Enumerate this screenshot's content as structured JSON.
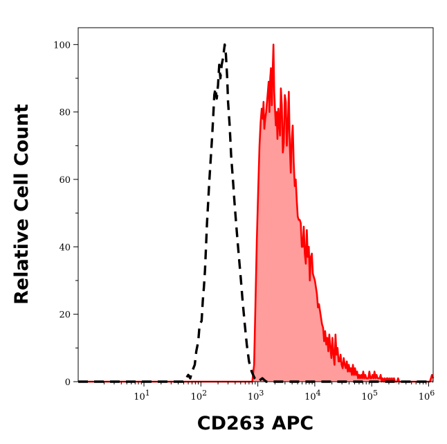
{
  "chart_data": {
    "type": "area",
    "title": "",
    "xlabel": "CD263 APC",
    "ylabel": "Relative Cell Count",
    "x_scale": "log",
    "xlim": [
      0.7,
      1200000
    ],
    "ylim": [
      0,
      105
    ],
    "grid": false,
    "legend": "none",
    "x_ticks": [
      {
        "value": 10,
        "base": "10",
        "exp": "1"
      },
      {
        "value": 100,
        "base": "10",
        "exp": "2"
      },
      {
        "value": 1000,
        "base": "10",
        "exp": "3"
      },
      {
        "value": 10000,
        "base": "10",
        "exp": "4"
      },
      {
        "value": 100000,
        "base": "10",
        "exp": "5"
      },
      {
        "value": 1000000,
        "base": "10",
        "exp": "6"
      }
    ],
    "y_ticks": [
      "0",
      "20",
      "40",
      "60",
      "80",
      "100"
    ],
    "series": [
      {
        "style": "dashed",
        "color": "#000000",
        "points": [
          [
            0.7,
            0
          ],
          [
            30,
            0
          ],
          [
            52,
            0
          ],
          [
            55,
            1
          ],
          [
            60,
            2
          ],
          [
            65,
            1
          ],
          [
            70,
            3
          ],
          [
            78,
            5
          ],
          [
            83,
            9
          ],
          [
            90,
            12
          ],
          [
            95,
            17
          ],
          [
            103,
            18
          ],
          [
            108,
            24
          ],
          [
            113,
            28
          ],
          [
            118,
            33
          ],
          [
            123,
            40
          ],
          [
            128,
            47
          ],
          [
            133,
            52
          ],
          [
            140,
            59
          ],
          [
            150,
            67
          ],
          [
            158,
            73
          ],
          [
            165,
            79
          ],
          [
            172,
            85
          ],
          [
            180,
            87
          ],
          [
            190,
            84
          ],
          [
            200,
            88
          ],
          [
            210,
            94
          ],
          [
            220,
            90
          ],
          [
            232,
            94
          ],
          [
            245,
            96
          ],
          [
            262,
            100
          ],
          [
            275,
            97
          ],
          [
            290,
            90
          ],
          [
            300,
            83
          ],
          [
            320,
            76
          ],
          [
            340,
            67
          ],
          [
            365,
            60
          ],
          [
            390,
            53
          ],
          [
            420,
            46
          ],
          [
            460,
            38
          ],
          [
            500,
            31
          ],
          [
            540,
            24
          ],
          [
            590,
            17
          ],
          [
            640,
            11
          ],
          [
            700,
            6
          ],
          [
            780,
            3
          ],
          [
            880,
            1
          ],
          [
            1000,
            0
          ],
          [
            1200,
            1
          ],
          [
            1400,
            0
          ],
          [
            3000,
            0
          ],
          [
            5000,
            0
          ],
          [
            8000,
            0
          ],
          [
            10000,
            0
          ],
          [
            1200000,
            0
          ]
        ]
      },
      {
        "style": "filled",
        "color": "#ff0000",
        "fill": "#ff9c9c",
        "points": [
          [
            0.7,
            0
          ],
          [
            500,
            0
          ],
          [
            800,
            0
          ],
          [
            860,
            5
          ],
          [
            900,
            20
          ],
          [
            960,
            42
          ],
          [
            1020,
            58
          ],
          [
            1070,
            70
          ],
          [
            1120,
            77
          ],
          [
            1170,
            81
          ],
          [
            1220,
            78
          ],
          [
            1260,
            83
          ],
          [
            1300,
            75
          ],
          [
            1350,
            78
          ],
          [
            1400,
            80
          ],
          [
            1450,
            83
          ],
          [
            1500,
            86
          ],
          [
            1550,
            89
          ],
          [
            1600,
            80
          ],
          [
            1650,
            90
          ],
          [
            1700,
            93
          ],
          [
            1760,
            82
          ],
          [
            1820,
            92
          ],
          [
            1880,
            100
          ],
          [
            1940,
            86
          ],
          [
            2000,
            81
          ],
          [
            2070,
            76
          ],
          [
            2140,
            80
          ],
          [
            2210,
            72
          ],
          [
            2290,
            81
          ],
          [
            2370,
            77
          ],
          [
            2450,
            73
          ],
          [
            2540,
            87
          ],
          [
            2640,
            82
          ],
          [
            2750,
            68
          ],
          [
            2860,
            71
          ],
          [
            2980,
            85
          ],
          [
            3100,
            83
          ],
          [
            3230,
            70
          ],
          [
            3360,
            76
          ],
          [
            3500,
            86
          ],
          [
            3640,
            70
          ],
          [
            3790,
            62
          ],
          [
            3940,
            72
          ],
          [
            4100,
            76
          ],
          [
            4270,
            65
          ],
          [
            4450,
            58
          ],
          [
            4630,
            60
          ],
          [
            4820,
            54
          ],
          [
            5020,
            49
          ],
          [
            5230,
            48
          ],
          [
            5450,
            48
          ],
          [
            5680,
            47
          ],
          [
            5910,
            40
          ],
          [
            6150,
            40
          ],
          [
            6410,
            46
          ],
          [
            6680,
            38
          ],
          [
            6960,
            35
          ],
          [
            7250,
            45
          ],
          [
            7550,
            37
          ],
          [
            7860,
            40
          ],
          [
            8190,
            30
          ],
          [
            8530,
            37
          ],
          [
            8890,
            38
          ],
          [
            9260,
            32
          ],
          [
            9650,
            31
          ],
          [
            10050,
            30
          ],
          [
            10470,
            28
          ],
          [
            10910,
            26
          ],
          [
            11370,
            22
          ],
          [
            11850,
            23
          ],
          [
            12350,
            21
          ],
          [
            12870,
            19
          ],
          [
            13420,
            17
          ],
          [
            14000,
            16
          ],
          [
            14600,
            12
          ],
          [
            15200,
            15
          ],
          [
            15900,
            11
          ],
          [
            16600,
            13
          ],
          [
            17300,
            9
          ],
          [
            18000,
            14
          ],
          [
            18800,
            10
          ],
          [
            19600,
            7
          ],
          [
            20400,
            13
          ],
          [
            21300,
            8
          ],
          [
            22200,
            5
          ],
          [
            23100,
            14
          ],
          [
            24100,
            8
          ],
          [
            25100,
            10
          ],
          [
            26200,
            6
          ],
          [
            27300,
            6
          ],
          [
            28400,
            8
          ],
          [
            29600,
            5
          ],
          [
            30900,
            4
          ],
          [
            32200,
            7
          ],
          [
            33600,
            5
          ],
          [
            35000,
            4
          ],
          [
            36500,
            6
          ],
          [
            38000,
            3
          ],
          [
            39600,
            5
          ],
          [
            41300,
            3
          ],
          [
            43100,
            4
          ],
          [
            44900,
            2
          ],
          [
            46800,
            5
          ],
          [
            48800,
            2
          ],
          [
            50900,
            4
          ],
          [
            53000,
            2
          ],
          [
            55300,
            3
          ],
          [
            57600,
            1
          ],
          [
            60100,
            2
          ],
          [
            62600,
            1
          ],
          [
            65300,
            2
          ],
          [
            68100,
            1
          ],
          [
            71000,
            3
          ],
          [
            74000,
            1
          ],
          [
            77100,
            2
          ],
          [
            80400,
            1
          ],
          [
            83800,
            1
          ],
          [
            87300,
            1
          ],
          [
            91000,
            3
          ],
          [
            94900,
            1
          ],
          [
            98900,
            1
          ],
          [
            103100,
            2
          ],
          [
            107500,
            1
          ],
          [
            112000,
            3
          ],
          [
            116700,
            1
          ],
          [
            121700,
            2
          ],
          [
            126800,
            1
          ],
          [
            132200,
            1
          ],
          [
            137800,
            1
          ],
          [
            143700,
            2
          ],
          [
            149700,
            0
          ],
          [
            156100,
            1
          ],
          [
            162700,
            0
          ],
          [
            169600,
            1
          ],
          [
            176800,
            0
          ],
          [
            184200,
            1
          ],
          [
            192000,
            1
          ],
          [
            200200,
            0
          ],
          [
            208600,
            1
          ],
          [
            217500,
            0
          ],
          [
            226700,
            1
          ],
          [
            236300,
            0
          ],
          [
            246300,
            1
          ],
          [
            256700,
            0
          ],
          [
            267600,
            0
          ],
          [
            278900,
            0
          ],
          [
            290700,
            1
          ],
          [
            303000,
            0
          ],
          [
            315800,
            0
          ],
          [
            329200,
            0
          ],
          [
            343100,
            0
          ],
          [
            357700,
            0
          ],
          [
            372800,
            0
          ],
          [
            388600,
            0
          ],
          [
            405000,
            0
          ],
          [
            422200,
            0
          ],
          [
            440100,
            0
          ],
          [
            458700,
            0
          ],
          [
            478100,
            0
          ],
          [
            498400,
            0
          ],
          [
            519500,
            0
          ],
          [
            541500,
            0
          ],
          [
            564400,
            0
          ],
          [
            588300,
            0
          ],
          [
            613200,
            0
          ],
          [
            639200,
            0
          ],
          [
            666300,
            0
          ],
          [
            694500,
            0
          ],
          [
            723900,
            0
          ],
          [
            754500,
            0
          ],
          [
            786500,
            0
          ],
          [
            819800,
            0
          ],
          [
            854500,
            0
          ],
          [
            890700,
            0
          ],
          [
            928400,
            0
          ],
          [
            967700,
            0
          ],
          [
            1008700,
            0
          ],
          [
            1051400,
            0
          ],
          [
            1095900,
            1
          ],
          [
            1142300,
            2
          ],
          [
            1200000,
            1
          ]
        ]
      }
    ]
  }
}
